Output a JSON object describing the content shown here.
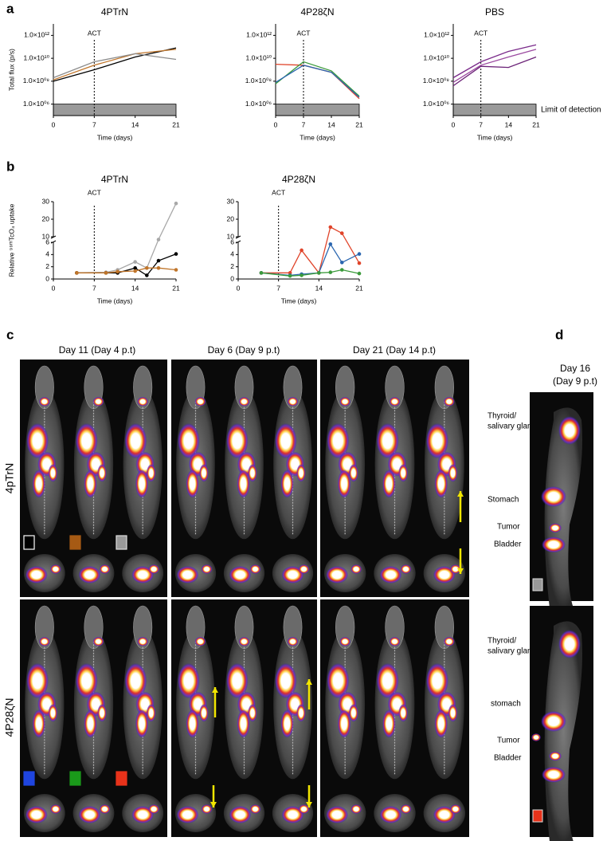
{
  "panel_labels": [
    "a",
    "b",
    "c",
    "d"
  ],
  "chart_data": [
    {
      "type": "line",
      "title": "4PTrN",
      "ylabel": "Total flux (p/s)",
      "xlabel": "Time (days)",
      "x": [
        0,
        7,
        14,
        21
      ],
      "xlim": [
        0,
        21
      ],
      "xticks": [
        0,
        7,
        14,
        21
      ],
      "log_y": true,
      "ylim": [
        100000,
        10000000000000
      ],
      "yticks": [
        {
          "value": 1000000,
          "label": "1.0×10⁰⁶"
        },
        {
          "value": 100000000,
          "label": "1.0×10⁰⁸"
        },
        {
          "value": 10000000000,
          "label": "1.0×10¹⁰"
        },
        {
          "value": 1000000000000,
          "label": "1.0×10¹²"
        }
      ],
      "annotation": {
        "text": "ACT",
        "x": 7
      },
      "limit_of_detection": 1000000,
      "series": [
        {
          "color": "#000000",
          "values": [
            100000000,
            1000000000,
            13000000000,
            80000000000
          ]
        },
        {
          "color": "#c0752a",
          "values": [
            130000000,
            2500000000,
            25000000000,
            60000000000
          ]
        },
        {
          "color": "#8c8c8c",
          "values": [
            200000000,
            5000000000,
            25000000000,
            8000000000
          ]
        }
      ]
    },
    {
      "type": "line",
      "title": "4P28ζN",
      "xlabel": "Time (days)",
      "x": [
        0,
        7,
        14,
        21
      ],
      "xlim": [
        0,
        21
      ],
      "xticks": [
        0,
        7,
        14,
        21
      ],
      "log_y": true,
      "ylim": [
        100000,
        10000000000000
      ],
      "yticks": [
        {
          "value": 1000000,
          "label": "1.0×10⁰⁶"
        },
        {
          "value": 100000000,
          "label": "1.0×10⁰⁸"
        },
        {
          "value": 10000000000,
          "label": "1.0×10¹⁰"
        },
        {
          "value": 1000000000000,
          "label": "1.0×10¹²"
        }
      ],
      "annotation": {
        "text": "ACT",
        "x": 7
      },
      "limit_of_detection": 1000000,
      "series": [
        {
          "color": "#e0442a",
          "values": [
            3000000000,
            2500000000,
            600000000,
            3000000
          ]
        },
        {
          "color": "#3a9a3a",
          "values": [
            60000000,
            5000000000,
            800000000,
            5000000
          ]
        },
        {
          "color": "#2a66b0",
          "values": [
            80000000,
            2500000000,
            600000000,
            4000000
          ]
        }
      ]
    },
    {
      "type": "line",
      "title": "PBS",
      "xlabel": "Time (days)",
      "x": [
        0,
        7,
        14,
        21
      ],
      "xlim": [
        0,
        21
      ],
      "xticks": [
        0,
        7,
        14,
        21
      ],
      "log_y": true,
      "ylim": [
        100000,
        10000000000000
      ],
      "yticks": [
        {
          "value": 1000000,
          "label": "1.0×10⁰⁶"
        },
        {
          "value": 100000000,
          "label": "1.0×10⁰⁸"
        },
        {
          "value": 10000000000,
          "label": "1.0×10¹⁰"
        },
        {
          "value": 1000000000000,
          "label": "1.0×10¹²"
        }
      ],
      "annotation": {
        "text": "ACT",
        "x": 7
      },
      "limit_of_detection": 1000000,
      "limit_label": "Limit of detection",
      "series": [
        {
          "color": "#7a2a8a",
          "values": [
            200000000,
            5000000000,
            40000000000,
            150000000000
          ]
        },
        {
          "color": "#9b4aa0",
          "values": [
            80000000,
            2500000000,
            13000000000,
            60000000000
          ]
        },
        {
          "color": "#6b2277",
          "values": [
            40000000,
            2000000000,
            1600000000,
            13000000000
          ]
        }
      ]
    },
    {
      "type": "line",
      "markers": true,
      "title": "4PTrN",
      "ylabel": "Relative ⁹⁹ᵐTcO₄ uptake",
      "xlabel": "Time (days)",
      "x": [
        4,
        9,
        11,
        14,
        16,
        18,
        21
      ],
      "xlim": [
        0,
        21
      ],
      "xticks": [
        0,
        7,
        14,
        21
      ],
      "ylim": [
        0,
        30
      ],
      "ybreak": [
        6,
        10
      ],
      "yticks": [
        0,
        2,
        4,
        6,
        10,
        20,
        30
      ],
      "annotation": {
        "text": "ACT",
        "x": 7
      },
      "series": [
        {
          "color": "#a8a8a8",
          "values": [
            1,
            1.1,
            1.5,
            2.8,
            1.8,
            8,
            29
          ]
        },
        {
          "color": "#000000",
          "values": [
            1,
            1,
            1,
            1.8,
            0.6,
            3,
            4.1
          ]
        },
        {
          "color": "#c0752a",
          "values": [
            1,
            1,
            1.2,
            1.3,
            1.8,
            1.8,
            1.5
          ]
        }
      ]
    },
    {
      "type": "line",
      "markers": true,
      "title": "4P28ζN",
      "xlabel": "Time (days)",
      "x": [
        4,
        9,
        11,
        14,
        16,
        18,
        21
      ],
      "xlim": [
        0,
        21
      ],
      "xticks": [
        0,
        7,
        14,
        21
      ],
      "ylim": [
        0,
        30
      ],
      "ybreak": [
        6,
        10
      ],
      "yticks": [
        0,
        2,
        4,
        6,
        10,
        20,
        30
      ],
      "annotation": {
        "text": "ACT",
        "x": 7
      },
      "series": [
        {
          "color": "#e0442a",
          "values": [
            1,
            1,
            4.7,
            1,
            15.5,
            12,
            2.6
          ]
        },
        {
          "color": "#2a66b0",
          "values": [
            1,
            0.6,
            0.8,
            1,
            5.7,
            2.7,
            4.1
          ]
        },
        {
          "color": "#3a9a3a",
          "values": [
            1,
            0.5,
            0.6,
            1,
            1.1,
            1.5,
            0.9
          ]
        }
      ]
    }
  ],
  "imaging": {
    "column_headers": [
      "Day 11 (Day 4 p.t)",
      "Day 6 (Day 9 p.t)",
      "Day 21 (Day 14 p.t)"
    ],
    "row_labels": [
      "4pTrN",
      "4P28ζN"
    ],
    "side": {
      "header": [
        "Day 16",
        "(Day 9 p.t)"
      ],
      "top_labels": [
        "Thyroid/",
        "salivary glands",
        "Stomach",
        "Tumor",
        "Bladder"
      ],
      "bottom_labels": [
        "Thyroid/",
        "salivary glands",
        "stomach",
        "Tumor",
        "Bladder"
      ]
    }
  }
}
